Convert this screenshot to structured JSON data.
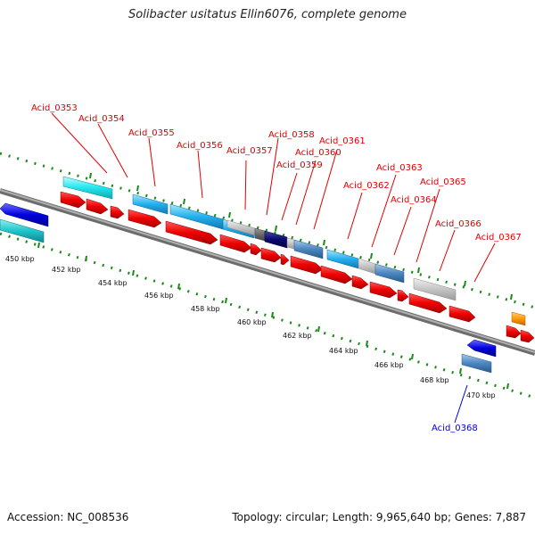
{
  "title": "Solibacter usitatus Ellin6076, complete genome",
  "footer": {
    "accession": "Accession: NC_008536",
    "summary": "Topology: circular; Length: 9,965,640 bp; Genes: 7,887"
  },
  "scale_labels": [
    "450 kbp",
    "452 kbp",
    "454 kbp",
    "456 kbp",
    "458 kbp",
    "460 kbp",
    "462 kbp",
    "464 kbp",
    "466 kbp",
    "468 kbp",
    "470 kbp"
  ],
  "gene_labels": [
    {
      "text": "Acid_0353",
      "strand": "forward"
    },
    {
      "text": "Acid_0354",
      "strand": "forward"
    },
    {
      "text": "Acid_0355",
      "strand": "forward"
    },
    {
      "text": "Acid_0356",
      "strand": "forward"
    },
    {
      "text": "Acid_0357",
      "strand": "forward"
    },
    {
      "text": "Acid_0358",
      "strand": "forward"
    },
    {
      "text": "Acid_0359",
      "strand": "forward"
    },
    {
      "text": "Acid_0360",
      "strand": "forward"
    },
    {
      "text": "Acid_0361",
      "strand": "forward"
    },
    {
      "text": "Acid_0362",
      "strand": "forward"
    },
    {
      "text": "Acid_0363",
      "strand": "forward"
    },
    {
      "text": "Acid_0364",
      "strand": "forward"
    },
    {
      "text": "Acid_0365",
      "strand": "forward"
    },
    {
      "text": "Acid_0366",
      "strand": "forward"
    },
    {
      "text": "Acid_0367",
      "strand": "forward"
    },
    {
      "text": "Acid_0368",
      "strand": "reverse"
    }
  ],
  "colors": {
    "forward_label": "#e00000",
    "reverse_label": "#0000cc",
    "forward_gene": "#ee0000",
    "reverse_gene": "#0000dd",
    "backbone": "#8a8a8a",
    "ticks": "#1a8a1a"
  }
}
